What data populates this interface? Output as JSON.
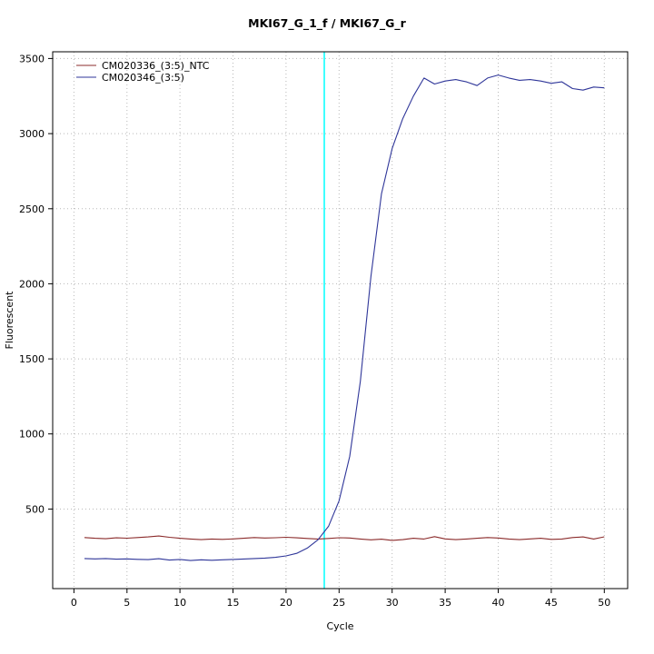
{
  "window": {
    "background": "#ffffff"
  },
  "chart_data": {
    "type": "line",
    "title": "MKI67_G_1_f / MKI67_G_r",
    "xlabel": "Cycle",
    "ylabel": "Fluorescent",
    "xlim": [
      -2,
      52.2
    ],
    "ylim": [
      -30,
      3545
    ],
    "xticks": [
      0,
      5,
      10,
      15,
      20,
      25,
      30,
      35,
      40,
      45,
      50
    ],
    "yticks": [
      500,
      1000,
      1500,
      2000,
      2500,
      3000,
      3500
    ],
    "grid": {
      "style": "dotted",
      "color": "#b8b8b8"
    },
    "threshold_line": {
      "x": 23.6,
      "color": "#00ffff"
    },
    "legend": {
      "position": "top-left",
      "entries": [
        "CM020336_(3:5)_NTC",
        "CM020346_(3:5)"
      ]
    },
    "x": [
      1,
      2,
      3,
      4,
      5,
      6,
      7,
      8,
      9,
      10,
      11,
      12,
      13,
      14,
      15,
      16,
      17,
      18,
      19,
      20,
      21,
      22,
      23,
      24,
      25,
      26,
      27,
      28,
      29,
      30,
      31,
      32,
      33,
      34,
      35,
      36,
      37,
      38,
      39,
      40,
      41,
      42,
      43,
      44,
      45,
      46,
      47,
      48,
      49,
      50
    ],
    "series": [
      {
        "name": "CM020336_(3:5)_NTC",
        "color": "#8b2b2b",
        "values": [
          310,
          305,
          302,
          308,
          306,
          310,
          314,
          320,
          312,
          305,
          300,
          296,
          300,
          298,
          301,
          305,
          310,
          307,
          309,
          312,
          308,
          304,
          300,
          304,
          309,
          307,
          300,
          295,
          299,
          291,
          296,
          305,
          300,
          316,
          301,
          296,
          300,
          305,
          310,
          307,
          300,
          296,
          301,
          305,
          298,
          300,
          310,
          314,
          300,
          315
        ]
      },
      {
        "name": "CM020346_(3:5)",
        "color": "#2f3699",
        "values": [
          170,
          168,
          170,
          166,
          168,
          165,
          163,
          169,
          160,
          164,
          157,
          162,
          159,
          162,
          164,
          167,
          170,
          173,
          178,
          188,
          205,
          240,
          295,
          385,
          555,
          850,
          1350,
          2050,
          2600,
          2900,
          3100,
          3250,
          3370,
          3330,
          3350,
          3360,
          3345,
          3320,
          3370,
          3390,
          3370,
          3355,
          3360,
          3350,
          3335,
          3345,
          3300,
          3290,
          3310,
          3305
        ]
      }
    ]
  }
}
